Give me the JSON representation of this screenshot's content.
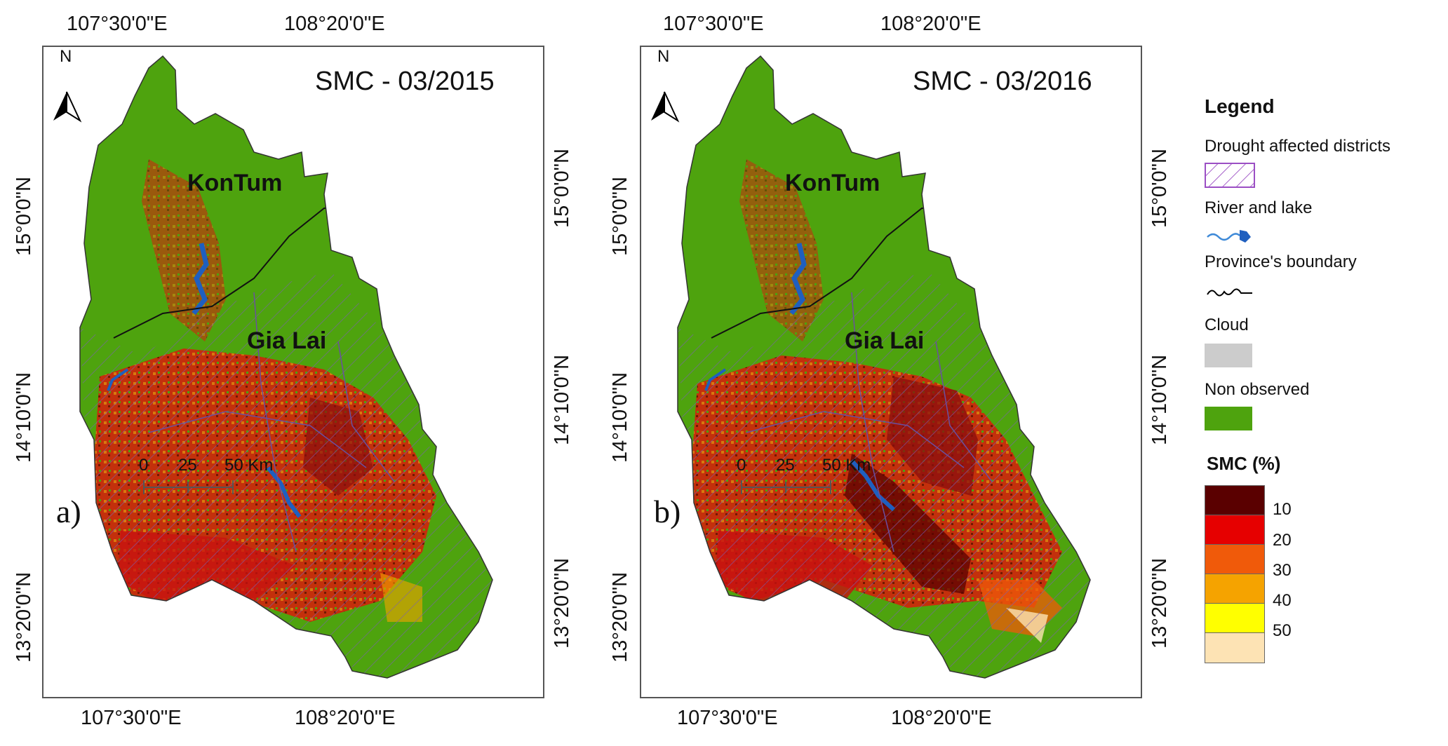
{
  "panels": [
    {
      "id": "a",
      "title": "SMC - 03/2015",
      "letter": "a)",
      "lon_labels_top": [
        "107°30'0\"E",
        "108°20'0\"E"
      ],
      "lon_labels_bottom": [
        "107°30'0\"E",
        "108°20'0\"E"
      ],
      "lat_labels_left": [
        "15°0'0\"N",
        "14°10'0\"N",
        "13°20'0\"N"
      ],
      "lat_labels_right": [
        "15°0'0\"N",
        "14°10'0\"N",
        "13°20'0\"N"
      ],
      "province_labels": [
        "KonTum",
        "Gia Lai"
      ],
      "north_label": "N",
      "scale_ticks": [
        "0",
        "25",
        "50 Km"
      ]
    },
    {
      "id": "b",
      "title": "SMC - 03/2016",
      "letter": "b)",
      "lon_labels_top": [
        "107°30'0\"E",
        "108°20'0\"E"
      ],
      "lon_labels_bottom": [
        "107°30'0\"E",
        "108°20'0\"E"
      ],
      "lat_labels_left": [
        "15°0'0\"N",
        "14°10'0\"N",
        "13°20'0\"N"
      ],
      "lat_labels_right": [
        "15°0'0\"N",
        "14°10'0\"N",
        "13°20'0\"N"
      ],
      "province_labels": [
        "KonTum",
        "Gia Lai"
      ],
      "north_label": "N",
      "scale_ticks": [
        "0",
        "25",
        "50 Km"
      ]
    }
  ],
  "legend": {
    "title": "Legend",
    "items": [
      {
        "label": "Drought affected districts",
        "icon": "hatch-icon",
        "color": "#9b4fc4"
      },
      {
        "label": "River and lake",
        "icon": "river-lake-icon",
        "color": "#1f5fbf"
      },
      {
        "label": "Province's boundary",
        "icon": "boundary-line-icon",
        "color": "#000000"
      },
      {
        "label": "Cloud",
        "icon": "cloud-swatch",
        "color": "#cccccc"
      },
      {
        "label": "Non observed",
        "icon": "non-observed-swatch",
        "color": "#4ea30e"
      }
    ],
    "smc_title": "SMC (%)",
    "smc_classes": [
      {
        "label": "10",
        "color": "#5a0000"
      },
      {
        "label": "20",
        "color": "#e60000"
      },
      {
        "label": "30",
        "color": "#f05a0a"
      },
      {
        "label": "40",
        "color": "#f5a300"
      },
      {
        "label": "50",
        "color": "#ffff00"
      },
      {
        "label": "",
        "color": "#fde3b4"
      }
    ]
  },
  "colors": {
    "non_observed": "#4ea30e",
    "water": "#1f5fbf",
    "hatch": "#7a5fb0"
  }
}
